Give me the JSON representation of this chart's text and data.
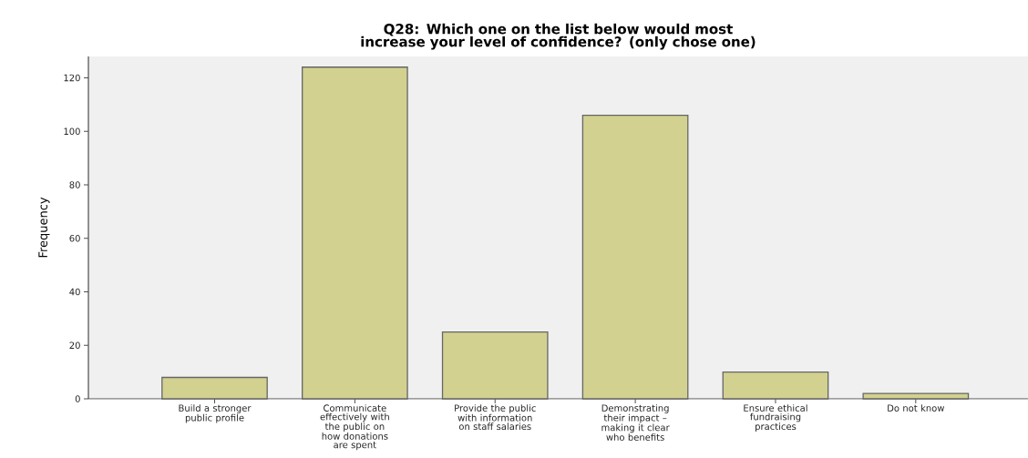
{
  "chart_data": {
    "type": "bar",
    "title": "Q28: Which one on the list below would most increase your level of confidence? (only chose one)",
    "ylabel": "Frequency",
    "categories": [
      "Build a stronger public profile",
      "Communicate effectively with the public on how donations are spent",
      "Provide the public with information on staff salaries",
      "Demonstrating their impact – making it clear who benefits",
      "Ensure ethical fundraising practices",
      "Do not know"
    ],
    "values": [
      8,
      124,
      25,
      106,
      10,
      2
    ],
    "color": "#d2d190",
    "ylim": [
      0,
      128
    ],
    "yticks": [
      0,
      20,
      40,
      60,
      80,
      100,
      120
    ],
    "grid": false
  }
}
